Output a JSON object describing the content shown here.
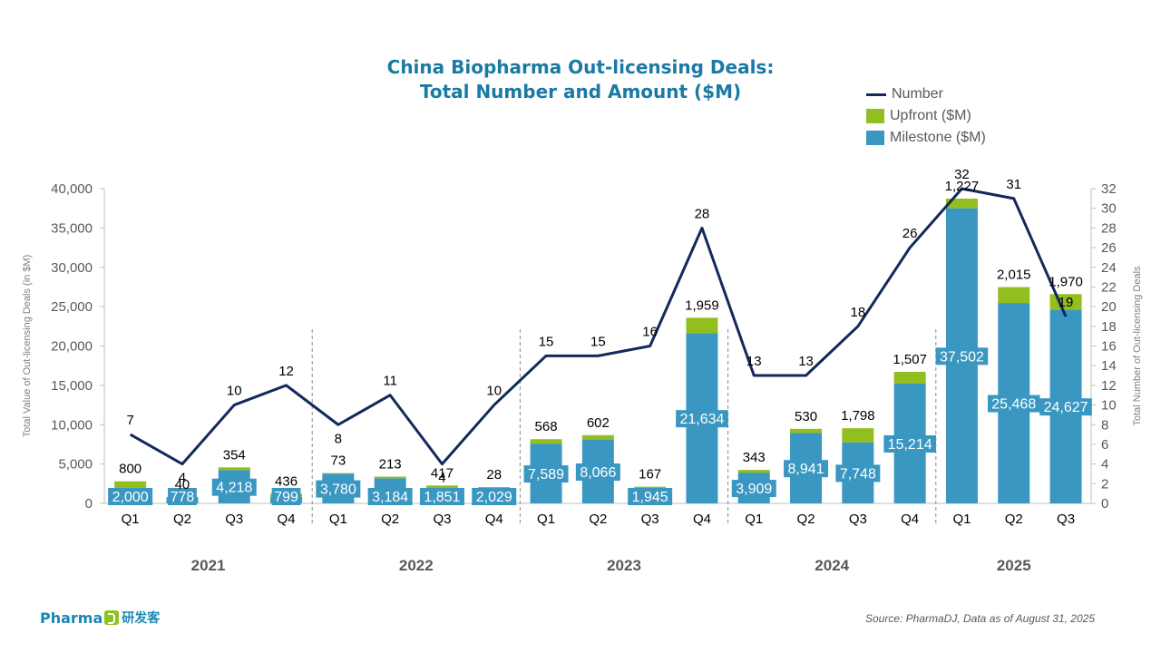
{
  "title": {
    "line1": "China Biopharma Out-licensing Deals:",
    "line2": "Total Number and Amount ($M)"
  },
  "legend": {
    "number": "Number",
    "upfront": "Upfront ($M)",
    "milestone": "Milestone ($M)"
  },
  "source": "Source: PharmaDJ, Data as of August 31, 2025",
  "logo": {
    "text": "Pharma",
    "cn": "研发客"
  },
  "colors": {
    "title": "#1a7aa5",
    "milestone": "#3a97c1",
    "upfront": "#92be1f",
    "line": "#13285c",
    "axis_text": "#595959"
  },
  "chart_data": {
    "type": "bar",
    "stacked": true,
    "combo_line": true,
    "title": "China Biopharma Out-licensing Deals: Total Number and Amount ($M)",
    "ylabel": "Total Value of Out-licensing Deals (in $M)",
    "y2label": "Total Number of Out-licensing Deals",
    "ylim": [
      0,
      40000
    ],
    "y2lim": [
      0,
      32
    ],
    "yticks": [
      "0",
      "5,000",
      "10,000",
      "15,000",
      "20,000",
      "25,000",
      "30,000",
      "35,000",
      "40,000"
    ],
    "y2ticks": [
      "0",
      "2",
      "4",
      "6",
      "8",
      "10",
      "12",
      "14",
      "16",
      "18",
      "20",
      "22",
      "24",
      "26",
      "28",
      "30",
      "32"
    ],
    "years": [
      "2021",
      "2022",
      "2023",
      "2024",
      "2025"
    ],
    "categories": [
      "Q1",
      "Q2",
      "Q3",
      "Q4",
      "Q1",
      "Q2",
      "Q3",
      "Q4",
      "Q1",
      "Q2",
      "Q3",
      "Q4",
      "Q1",
      "Q2",
      "Q3",
      "Q4",
      "Q1",
      "Q2",
      "Q3"
    ],
    "series": [
      {
        "name": "Milestone ($M)",
        "kind": "bar",
        "values": [
          2000,
          778,
          4218,
          799,
          3780,
          3184,
          1851,
          2029,
          7589,
          8066,
          1945,
          21634,
          3909,
          8941,
          7748,
          15214,
          37502,
          25468,
          24627
        ]
      },
      {
        "name": "Upfront ($M)",
        "kind": "bar",
        "values": [
          800,
          40,
          354,
          436,
          73,
          213,
          417,
          28,
          568,
          602,
          167,
          1959,
          343,
          530,
          1798,
          1507,
          1227,
          2015,
          1970
        ]
      },
      {
        "name": "Number",
        "kind": "line",
        "axis": "right",
        "values": [
          7,
          4,
          10,
          12,
          8,
          11,
          4,
          10,
          15,
          15,
          16,
          28,
          13,
          13,
          18,
          26,
          32,
          31,
          19
        ]
      }
    ],
    "legend_position": "top-right",
    "grid": false
  }
}
